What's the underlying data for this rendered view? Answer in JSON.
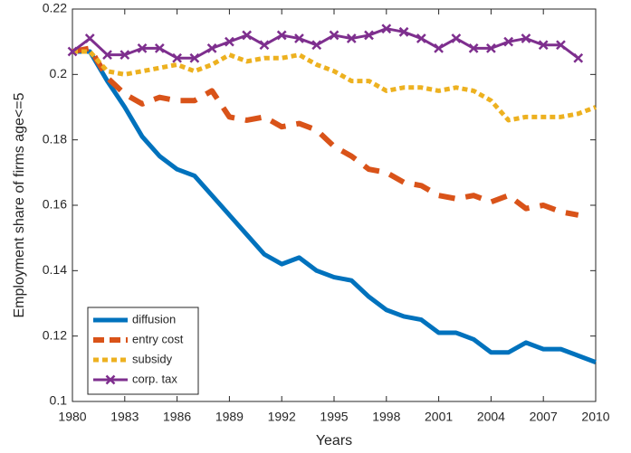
{
  "chart_data": {
    "type": "line",
    "xlabel": "Years",
    "ylabel": "Employment share of firms age<=5",
    "x": [
      1980,
      1981,
      1982,
      1983,
      1984,
      1985,
      1986,
      1987,
      1988,
      1989,
      1990,
      1991,
      1992,
      1993,
      1994,
      1995,
      1996,
      1997,
      1998,
      1999,
      2000,
      2001,
      2002,
      2003,
      2004,
      2005,
      2006,
      2007,
      2008,
      2009,
      2010
    ],
    "xlim": [
      1980,
      2010
    ],
    "xticks": [
      1980,
      1983,
      1986,
      1989,
      1992,
      1995,
      1998,
      2001,
      2004,
      2007,
      2010
    ],
    "ylim": [
      0.1,
      0.22
    ],
    "yticks": [
      0.1,
      0.12,
      0.14,
      0.16,
      0.18,
      0.2,
      0.22
    ],
    "legend": "lower left",
    "series": [
      {
        "name": "diffusion",
        "color": "#0072bd",
        "line_style": "solid",
        "values": [
          0.207,
          0.207,
          0.198,
          0.19,
          0.181,
          0.175,
          0.171,
          0.169,
          0.163,
          0.157,
          0.151,
          0.145,
          0.142,
          0.144,
          0.14,
          0.138,
          0.137,
          0.132,
          0.128,
          0.126,
          0.125,
          0.121,
          0.121,
          0.119,
          0.115,
          0.115,
          0.118,
          0.116,
          0.116,
          0.114,
          0.112
        ]
      },
      {
        "name": "entry cost",
        "color": "#d95319",
        "line_style": "dashed",
        "values": [
          0.207,
          0.208,
          0.199,
          0.194,
          0.191,
          0.193,
          0.192,
          0.192,
          0.195,
          0.187,
          0.186,
          0.187,
          0.184,
          0.185,
          0.183,
          0.178,
          0.175,
          0.171,
          0.17,
          0.167,
          0.166,
          0.163,
          0.162,
          0.163,
          0.161,
          0.163,
          0.159,
          0.16,
          0.158,
          0.157,
          null
        ]
      },
      {
        "name": "subsidy",
        "color": "#edb120",
        "line_style": "dotted",
        "values": [
          0.207,
          0.207,
          0.201,
          0.2,
          0.201,
          0.202,
          0.203,
          0.201,
          0.203,
          0.206,
          0.204,
          0.205,
          0.205,
          0.206,
          0.203,
          0.201,
          0.198,
          0.198,
          0.195,
          0.196,
          0.196,
          0.195,
          0.196,
          0.195,
          0.192,
          0.186,
          0.187,
          0.187,
          0.187,
          0.188,
          0.19
        ]
      },
      {
        "name": "corp. tax",
        "color": "#7e2f8e",
        "line_style": "solid",
        "marker": "x",
        "values": [
          0.207,
          0.211,
          0.206,
          0.206,
          0.208,
          0.208,
          0.205,
          0.205,
          0.208,
          0.21,
          0.212,
          0.209,
          0.212,
          0.211,
          0.209,
          0.212,
          0.211,
          0.212,
          0.214,
          0.213,
          0.211,
          0.208,
          0.211,
          0.208,
          0.208,
          0.21,
          0.211,
          0.209,
          0.209,
          0.205,
          null
        ]
      }
    ]
  }
}
